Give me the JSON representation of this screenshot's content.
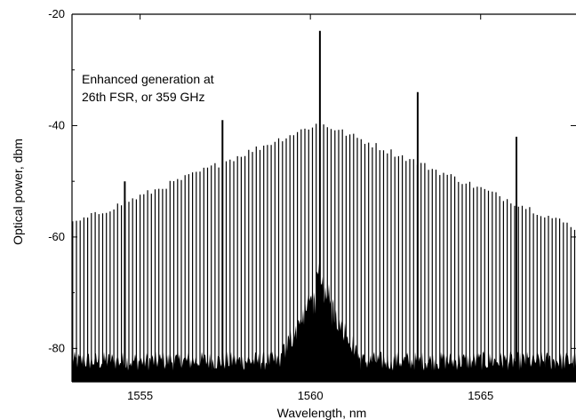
{
  "chart_data": {
    "type": "line",
    "title": "",
    "xlabel": "Wavelength, nm",
    "ylabel": "Optical power, dbm",
    "xlim": [
      1553.0,
      1567.8
    ],
    "ylim": [
      -86,
      -20
    ],
    "xticks": [
      1555,
      1560,
      1565
    ],
    "xtick_labels": [
      "1555",
      "1560",
      "1565"
    ],
    "yticks": [
      -20,
      -40,
      -60,
      -80
    ],
    "ytick_labels": [
      "-20",
      "-40",
      "-60",
      "-80"
    ],
    "grid": false,
    "legend": "none",
    "annotation": [
      "Enhanced generation at",
      "26th FSR, or 359 GHz"
    ],
    "comb": {
      "center_wavelength": 1560.28,
      "line_spacing_nm": 0.11,
      "center_peak_dbm": -39.5,
      "slope_db_per_nm": 2.5,
      "floor_dbm": -73.5,
      "noise_floor_dbm": -84
    },
    "enhanced_peaks": [
      {
        "x": 1554.55,
        "y": -50
      },
      {
        "x": 1557.42,
        "y": -39
      },
      {
        "x": 1560.28,
        "y": -23
      },
      {
        "x": 1563.15,
        "y": -34
      },
      {
        "x": 1566.05,
        "y": -42
      }
    ],
    "color": "#000000"
  }
}
